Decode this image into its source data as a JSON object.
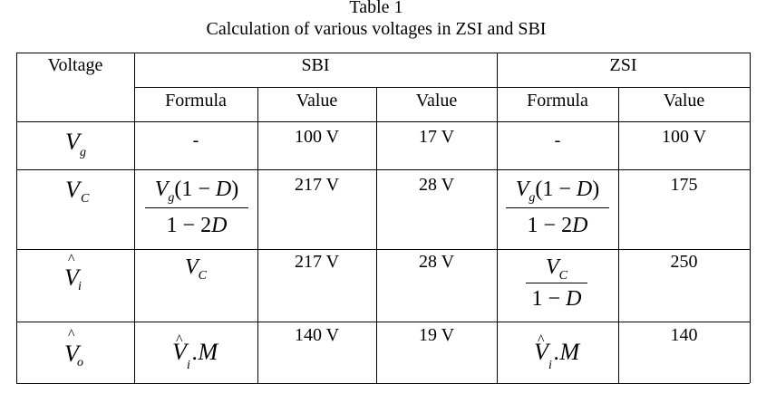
{
  "caption": {
    "label": "Table 1",
    "title": "Calculation of various voltages in ZSI and SBI"
  },
  "headers": {
    "voltage": "Voltage",
    "sbi": "SBI",
    "zsi": "ZSI",
    "formula": "Formula",
    "value": "Value"
  },
  "rows": [
    {
      "symbol": "V",
      "subscript": "g",
      "sbi_formula": "-",
      "sbi_value_1": "100 V",
      "sbi_value_2": "17 V",
      "zsi_formula": "-",
      "zsi_value": "100 V"
    },
    {
      "symbol": "V",
      "subscript": "C",
      "sbi_formula_num": "V_g(1 − D)",
      "sbi_formula_den": "1 − 2D",
      "sbi_value_1": "217 V",
      "sbi_value_2": "28 V",
      "zsi_formula_num": "V_g(1 − D)",
      "zsi_formula_den": "1 − 2D",
      "zsi_value": "175"
    },
    {
      "symbol": "V",
      "subscript": "i",
      "hat": "^",
      "sbi_formula": "V_C",
      "sbi_value_1": "217 V",
      "sbi_value_2": "28 V",
      "zsi_formula_num": "V_C",
      "zsi_formula_den": "1 − D",
      "zsi_value": "250"
    },
    {
      "symbol": "V",
      "subscript": "o",
      "hat": "^",
      "sbi_formula": "V̂_i.M",
      "sbi_value_1": "140 V",
      "sbi_value_2": "19 V",
      "zsi_formula": "V̂_i.M",
      "zsi_value": "140"
    }
  ]
}
